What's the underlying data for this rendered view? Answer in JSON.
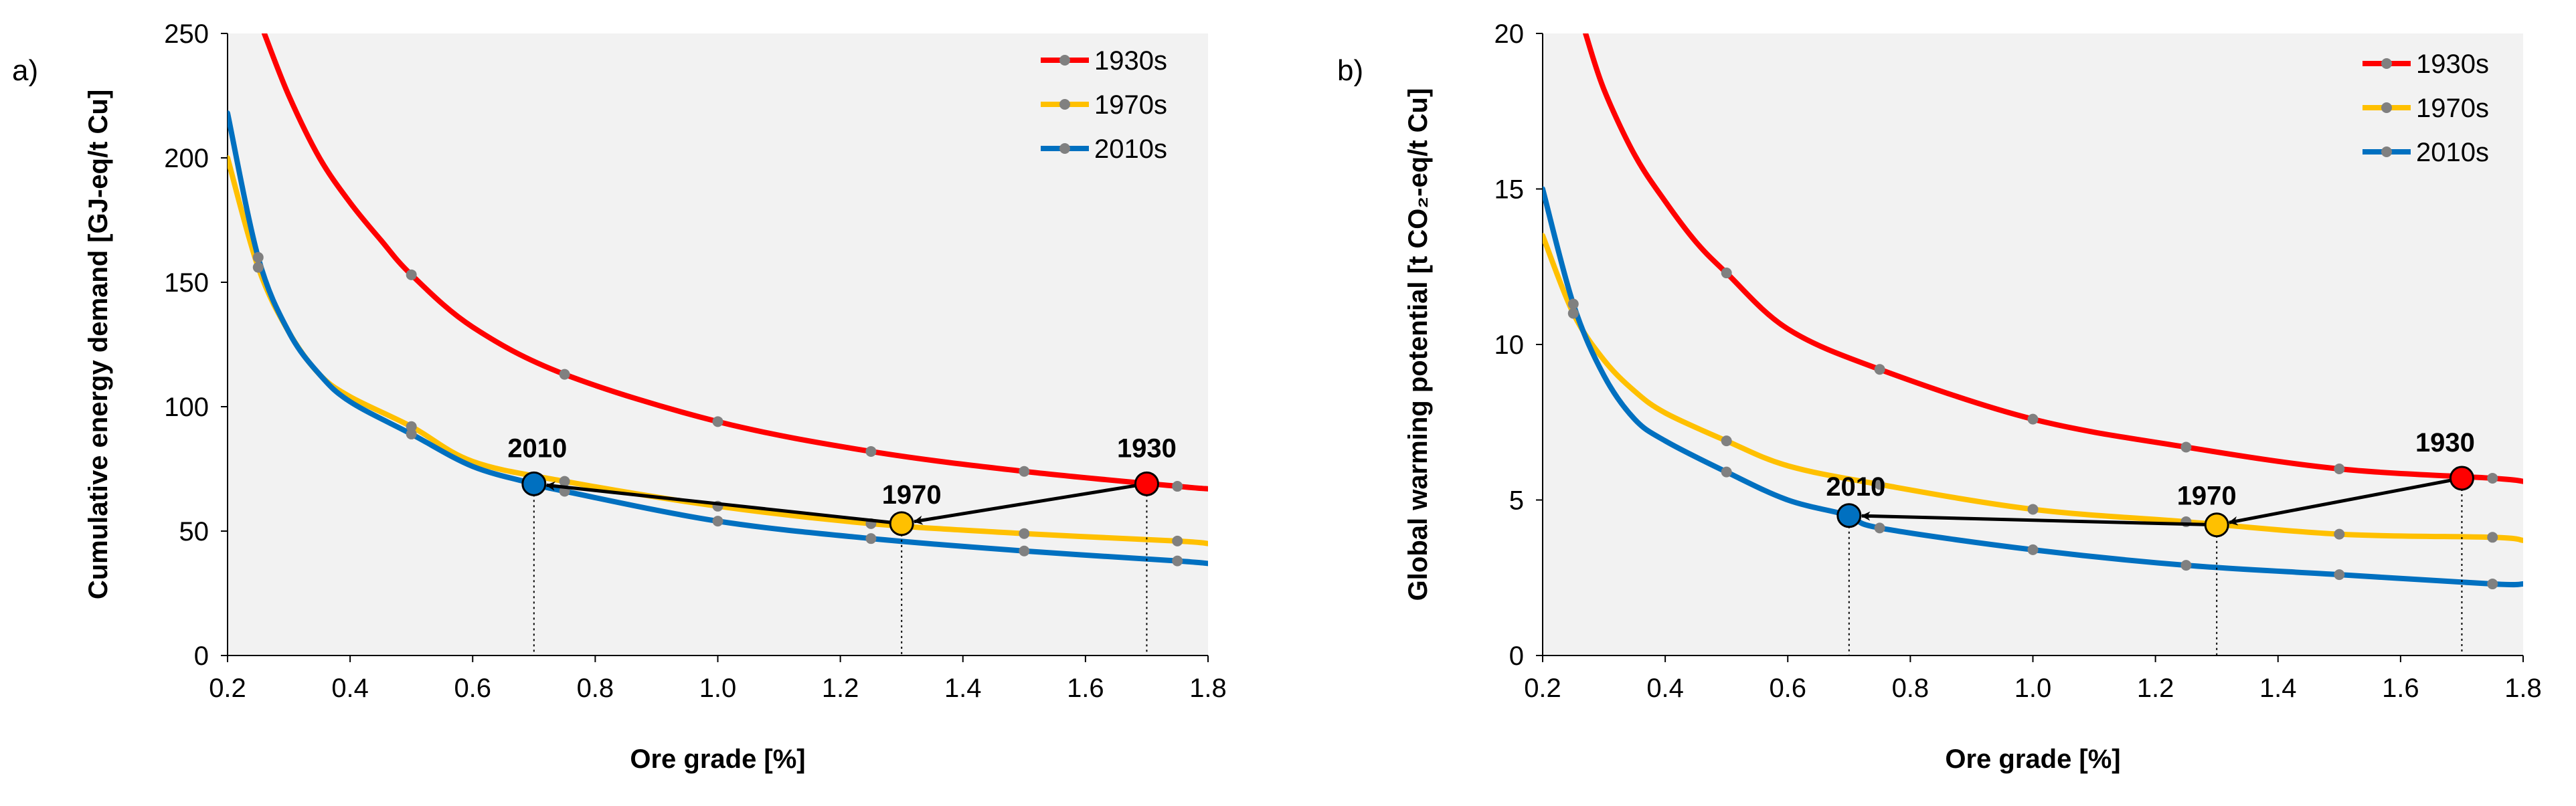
{
  "colors": {
    "1930s": "#ff0000",
    "1970s": "#ffc000",
    "2010s": "#0070c0",
    "plot_bg": "#f2f2f2",
    "marker_fill": "#808080"
  },
  "chart_data": [
    {
      "type": "line",
      "panel_label": "a)",
      "xlabel": "Ore grade [%]",
      "ylabel": "Cumulative energy demand [GJ-eq/t Cu]",
      "xlim": [
        0.2,
        1.8
      ],
      "ylim": [
        0,
        250
      ],
      "xticks": [
        0.2,
        0.4,
        0.6,
        0.8,
        1.0,
        1.2,
        1.4,
        1.6,
        1.8
      ],
      "xtick_labels": [
        "0.2",
        "0.4",
        "0.6",
        "0.8",
        "1.0",
        "1.2",
        "1.4",
        "1.6",
        "1.8"
      ],
      "yticks": [
        0,
        50,
        100,
        150,
        200,
        250
      ],
      "ytick_labels": [
        "0",
        "50",
        "100",
        "150",
        "200",
        "250"
      ],
      "legend": [
        "1930s",
        "1970s",
        "2010s"
      ],
      "legend_position": "top-right",
      "series": [
        {
          "name": "1930s",
          "marker_x": [
            0.5,
            0.75,
            1.0,
            1.25,
            1.5,
            1.75
          ],
          "marker_y": [
            153,
            113,
            94,
            82,
            74,
            68
          ],
          "curve_x": [
            0.26,
            0.3,
            0.35,
            0.4,
            0.45,
            0.5,
            0.6,
            0.75,
            1.0,
            1.25,
            1.5,
            1.75,
            1.8
          ],
          "curve_y": [
            250,
            225,
            200,
            182,
            167,
            153,
            132,
            113,
            94,
            82,
            74,
            68,
            67
          ]
        },
        {
          "name": "1970s",
          "marker_x": [
            0.25,
            0.5,
            0.75,
            1.0,
            1.25,
            1.5,
            1.75
          ],
          "marker_y": [
            156,
            92,
            70,
            60,
            53,
            49,
            46
          ],
          "curve_x": [
            0.2,
            0.25,
            0.3,
            0.35,
            0.4,
            0.5,
            0.6,
            0.75,
            1.0,
            1.25,
            1.5,
            1.75,
            1.8
          ],
          "curve_y": [
            200,
            156,
            130,
            113,
            104,
            92,
            78,
            70,
            60,
            53,
            49,
            46,
            45
          ]
        },
        {
          "name": "2010s",
          "marker_x": [
            0.25,
            0.5,
            0.75,
            1.0,
            1.25,
            1.5,
            1.75
          ],
          "marker_y": [
            160,
            89,
            66,
            54,
            47,
            42,
            38
          ],
          "curve_x": [
            0.2,
            0.25,
            0.3,
            0.35,
            0.4,
            0.5,
            0.6,
            0.7,
            0.75,
            1.0,
            1.25,
            1.5,
            1.75,
            1.8
          ],
          "curve_y": [
            218,
            160,
            130,
            113,
            102,
            89,
            76,
            69,
            66,
            54,
            47,
            42,
            38,
            37
          ]
        }
      ],
      "highlights": [
        {
          "label": "1930",
          "x": 1.7,
          "y": 69,
          "color_key": "1930s"
        },
        {
          "label": "1970",
          "x": 1.3,
          "y": 53,
          "color_key": "1970s"
        },
        {
          "label": "2010",
          "x": 0.7,
          "y": 69,
          "color_key": "2010s"
        }
      ]
    },
    {
      "type": "line",
      "panel_label": "b)",
      "xlabel": "Ore grade [%]",
      "ylabel": "Global warming potential [t CO₂-eq/t Cu]",
      "xlim": [
        0.2,
        1.8
      ],
      "ylim": [
        0,
        20
      ],
      "xticks": [
        0.2,
        0.4,
        0.6,
        0.8,
        1.0,
        1.2,
        1.4,
        1.6,
        1.8
      ],
      "xtick_labels": [
        "0.2",
        "0.4",
        "0.6",
        "0.8",
        "1.0",
        "1.2",
        "1.4",
        "1.6",
        "1.8"
      ],
      "yticks": [
        0,
        5,
        10,
        15,
        20
      ],
      "ytick_labels": [
        "0",
        "5",
        "10",
        "15",
        "20"
      ],
      "legend": [
        "1930s",
        "1970s",
        "2010s"
      ],
      "legend_position": "top-right",
      "series": [
        {
          "name": "1930s",
          "marker_x": [
            0.5,
            0.75,
            1.0,
            1.25,
            1.5,
            1.75
          ],
          "marker_y": [
            12.3,
            9.2,
            7.6,
            6.7,
            6.0,
            5.7
          ],
          "curve_x": [
            0.27,
            0.3,
            0.35,
            0.4,
            0.45,
            0.5,
            0.6,
            0.75,
            1.0,
            1.25,
            1.5,
            1.75,
            1.8
          ],
          "curve_y": [
            20,
            18.2,
            16.1,
            14.6,
            13.3,
            12.3,
            10.5,
            9.2,
            7.6,
            6.7,
            6.0,
            5.7,
            5.6
          ]
        },
        {
          "name": "1970s",
          "marker_x": [
            0.25,
            0.5,
            0.75,
            1.0,
            1.25,
            1.5,
            1.75
          ],
          "marker_y": [
            11.0,
            6.9,
            5.5,
            4.7,
            4.3,
            3.9,
            3.8
          ],
          "curve_x": [
            0.2,
            0.25,
            0.3,
            0.35,
            0.4,
            0.5,
            0.6,
            0.75,
            1.0,
            1.25,
            1.5,
            1.75,
            1.8
          ],
          "curve_y": [
            13.5,
            11.0,
            9.5,
            8.5,
            7.8,
            6.9,
            6.1,
            5.5,
            4.7,
            4.3,
            3.9,
            3.8,
            3.7
          ]
        },
        {
          "name": "2010s",
          "marker_x": [
            0.25,
            0.5,
            0.75,
            1.0,
            1.25,
            1.5,
            1.75
          ],
          "marker_y": [
            11.3,
            5.9,
            4.1,
            3.4,
            2.9,
            2.6,
            2.3
          ],
          "curve_x": [
            0.2,
            0.25,
            0.3,
            0.35,
            0.4,
            0.5,
            0.6,
            0.7,
            0.75,
            1.0,
            1.25,
            1.5,
            1.75,
            1.8
          ],
          "curve_y": [
            15.0,
            11.3,
            9.0,
            7.6,
            6.9,
            5.9,
            5.0,
            4.5,
            4.1,
            3.4,
            2.9,
            2.6,
            2.3,
            2.3
          ]
        }
      ],
      "highlights": [
        {
          "label": "1930",
          "x": 1.7,
          "y": 5.7,
          "color_key": "1930s"
        },
        {
          "label": "1970",
          "x": 1.3,
          "y": 4.2,
          "color_key": "1970s"
        },
        {
          "label": "2010",
          "x": 0.7,
          "y": 4.5,
          "color_key": "2010s"
        }
      ]
    }
  ]
}
